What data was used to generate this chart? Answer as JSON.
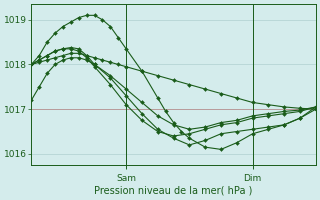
{
  "bg_color": "#d4ecec",
  "grid_color": "#b0d0d0",
  "line_color": "#1a5c1a",
  "marker_color": "#1a5c1a",
  "xlabel": "Pression niveau de la mer( hPa )",
  "xlabel_color": "#1a5c1a",
  "tick_color": "#1a5c1a",
  "ylim": [
    1015.75,
    1019.35
  ],
  "yticks": [
    1016,
    1017,
    1018,
    1019
  ],
  "xlim": [
    0,
    72
  ],
  "xtick_labels": [
    "Sam",
    "Dim"
  ],
  "xtick_positions": [
    24,
    56
  ],
  "vline_positions": [
    24,
    56
  ],
  "hline_y": 1017.0,
  "hline_color": "#cc2222",
  "series": [
    {
      "x": [
        0,
        2,
        4,
        6,
        8,
        10,
        12,
        14,
        16,
        18,
        20,
        22,
        24,
        28,
        32,
        36,
        40,
        44,
        48,
        52,
        56,
        60,
        64,
        68,
        72
      ],
      "y": [
        1018.0,
        1018.05,
        1018.1,
        1018.15,
        1018.2,
        1018.25,
        1018.25,
        1018.2,
        1018.15,
        1018.1,
        1018.05,
        1018.0,
        1017.95,
        1017.85,
        1017.75,
        1017.65,
        1017.55,
        1017.45,
        1017.35,
        1017.25,
        1017.15,
        1017.1,
        1017.05,
        1017.02,
        1017.0
      ]
    },
    {
      "x": [
        0,
        2,
        4,
        6,
        8,
        10,
        12,
        14,
        16,
        20,
        24,
        28,
        32,
        36,
        40,
        44,
        48,
        52,
        56,
        60,
        64,
        68,
        72
      ],
      "y": [
        1018.0,
        1018.1,
        1018.2,
        1018.3,
        1018.35,
        1018.38,
        1018.35,
        1018.2,
        1018.0,
        1017.7,
        1017.3,
        1016.9,
        1016.55,
        1016.35,
        1016.2,
        1016.3,
        1016.45,
        1016.5,
        1016.55,
        1016.6,
        1016.65,
        1016.8,
        1017.0
      ]
    },
    {
      "x": [
        0,
        2,
        4,
        6,
        8,
        10,
        12,
        14,
        16,
        18,
        20,
        22,
        24,
        28,
        32,
        34,
        36,
        38,
        40,
        44,
        48,
        52,
        56,
        60,
        64,
        68,
        72
      ],
      "y": [
        1018.0,
        1018.2,
        1018.5,
        1018.7,
        1018.85,
        1018.95,
        1019.05,
        1019.1,
        1019.1,
        1019.0,
        1018.85,
        1018.6,
        1018.35,
        1017.85,
        1017.25,
        1016.95,
        1016.7,
        1016.5,
        1016.35,
        1016.15,
        1016.1,
        1016.25,
        1016.45,
        1016.55,
        1016.65,
        1016.8,
        1017.05
      ]
    },
    {
      "x": [
        0,
        2,
        4,
        6,
        8,
        10,
        12,
        14,
        16,
        20,
        24,
        28,
        32,
        36,
        40,
        44,
        48,
        52,
        56,
        60,
        64,
        68,
        72
      ],
      "y": [
        1018.0,
        1018.1,
        1018.2,
        1018.3,
        1018.35,
        1018.35,
        1018.3,
        1018.15,
        1017.95,
        1017.55,
        1017.1,
        1016.75,
        1016.5,
        1016.4,
        1016.45,
        1016.55,
        1016.65,
        1016.7,
        1016.8,
        1016.85,
        1016.9,
        1016.95,
        1017.05
      ]
    },
    {
      "x": [
        0,
        2,
        4,
        6,
        8,
        10,
        12,
        14,
        16,
        20,
        24,
        28,
        32,
        36,
        40,
        44,
        48,
        52,
        56,
        60,
        64,
        68,
        72
      ],
      "y": [
        1017.2,
        1017.5,
        1017.8,
        1018.0,
        1018.1,
        1018.15,
        1018.15,
        1018.1,
        1018.0,
        1017.75,
        1017.45,
        1017.15,
        1016.85,
        1016.65,
        1016.55,
        1016.6,
        1016.7,
        1016.75,
        1016.85,
        1016.9,
        1016.95,
        1016.98,
        1017.05
      ]
    }
  ]
}
